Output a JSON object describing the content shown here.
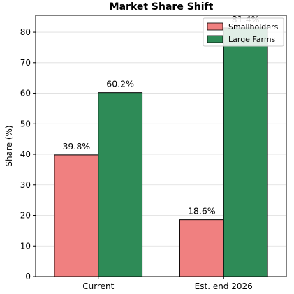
{
  "chart_data": {
    "type": "bar",
    "title": "Market Share Shift",
    "xlabel": "",
    "ylabel": "Share (%)",
    "categories": [
      "Current",
      "Est. end 2026"
    ],
    "series": [
      {
        "name": "Smallholders",
        "values": [
          39.8,
          18.6
        ],
        "color": "#f08080",
        "labels": [
          "39.8%",
          "18.6%"
        ]
      },
      {
        "name": "Large Farms",
        "values": [
          60.2,
          81.4
        ],
        "color": "#2e8b57",
        "labels": [
          "60.2%",
          "81.4%"
        ]
      }
    ],
    "ylim": [
      0,
      85.5
    ],
    "yticks": [
      0,
      10,
      20,
      30,
      40,
      50,
      60,
      70,
      80
    ],
    "grid": true,
    "legend": "top-right"
  }
}
